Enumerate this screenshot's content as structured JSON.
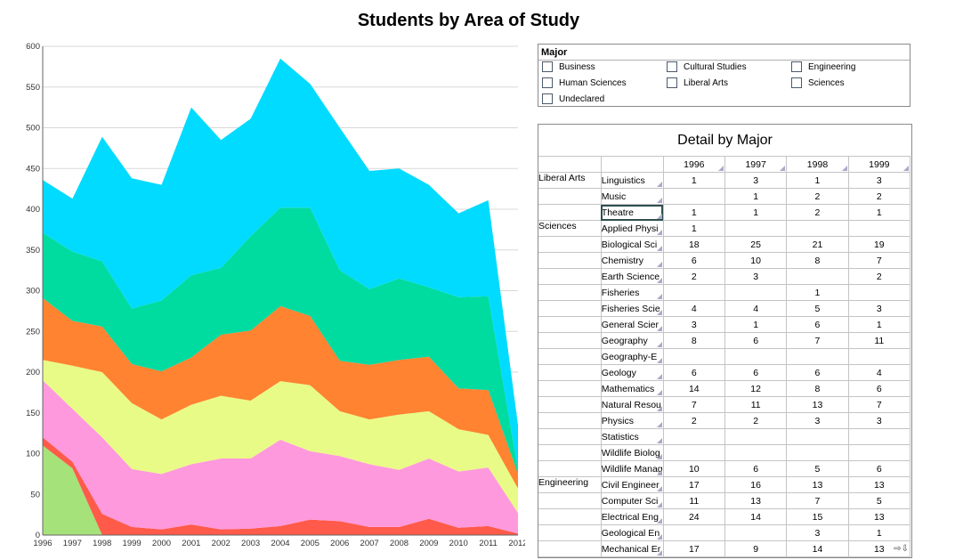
{
  "title": "Students by Area of Study",
  "chart_data": {
    "type": "area",
    "stacked": true,
    "x": [
      "1996",
      "1997",
      "1998",
      "1999",
      "2000",
      "2001",
      "2002",
      "2003",
      "2004",
      "2005",
      "2006",
      "2007",
      "2008",
      "2009",
      "2010",
      "2011",
      "2012"
    ],
    "ylim": [
      0,
      600
    ],
    "yticks": [
      0,
      50,
      100,
      150,
      200,
      250,
      300,
      350,
      400,
      450,
      500,
      550,
      600
    ],
    "grid": true,
    "series": [
      {
        "color": "#a6e27a",
        "values": [
          110,
          82,
          0,
          0,
          0,
          0,
          0,
          0,
          0,
          0,
          0,
          0,
          0,
          0,
          0,
          0,
          0
        ]
      },
      {
        "color": "#ff5a4a",
        "values": [
          10,
          8,
          26,
          10,
          7,
          13,
          7,
          8,
          11,
          19,
          17,
          10,
          10,
          20,
          9,
          11,
          2
        ]
      },
      {
        "color": "#ff99dd",
        "values": [
          70,
          65,
          94,
          71,
          68,
          74,
          87,
          86,
          106,
          84,
          80,
          77,
          70,
          74,
          69,
          72,
          25
        ]
      },
      {
        "color": "#e9fb87",
        "values": [
          25,
          53,
          80,
          81,
          67,
          73,
          77,
          71,
          72,
          81,
          55,
          55,
          68,
          58,
          52,
          40,
          30
        ]
      },
      {
        "color": "#ff8330",
        "values": [
          76,
          55,
          56,
          48,
          59,
          58,
          75,
          86,
          92,
          85,
          62,
          67,
          67,
          67,
          50,
          55,
          18
        ]
      },
      {
        "color": "#00dba0",
        "values": [
          80,
          85,
          80,
          68,
          87,
          101,
          82,
          116,
          121,
          133,
          111,
          93,
          100,
          85,
          112,
          115,
          5
        ]
      },
      {
        "color": "#00dbff",
        "values": [
          65,
          65,
          153,
          160,
          142,
          206,
          157,
          144,
          183,
          152,
          175,
          145,
          135,
          126,
          103,
          118,
          55
        ]
      }
    ]
  },
  "major": {
    "label": "Major",
    "options": [
      "Business",
      "Cultural Studies",
      "Engineering",
      "Human Sciences",
      "Liberal Arts",
      "Sciences",
      "Undeclared"
    ]
  },
  "detail": {
    "title": "Detail by Major",
    "years": [
      "1996",
      "1997",
      "1998",
      "1999"
    ],
    "groups": [
      {
        "area": "Liberal Arts",
        "rows": [
          {
            "name": "Linguistics",
            "vals": [
              "1",
              "3",
              "1",
              "3"
            ]
          },
          {
            "name": "Music",
            "vals": [
              "",
              "1",
              "2",
              "2"
            ]
          },
          {
            "name": "Theatre",
            "vals": [
              "1",
              "1",
              "2",
              "1"
            ]
          }
        ]
      },
      {
        "area": "Sciences",
        "rows": [
          {
            "name": "Applied Physi",
            "vals": [
              "1",
              "",
              "",
              ""
            ]
          },
          {
            "name": "Biological Sci",
            "vals": [
              "18",
              "25",
              "21",
              "19"
            ]
          },
          {
            "name": "Chemistry",
            "vals": [
              "6",
              "10",
              "8",
              "7"
            ]
          },
          {
            "name": "Earth Science",
            "vals": [
              "2",
              "3",
              "",
              "2"
            ]
          },
          {
            "name": "Fisheries",
            "vals": [
              "",
              "",
              "1",
              ""
            ]
          },
          {
            "name": "Fisheries Scie",
            "vals": [
              "4",
              "4",
              "5",
              "3"
            ]
          },
          {
            "name": "General Scier",
            "vals": [
              "3",
              "1",
              "6",
              "1"
            ]
          },
          {
            "name": "Geography",
            "vals": [
              "8",
              "6",
              "7",
              "11"
            ]
          },
          {
            "name": "Geography-E",
            "vals": [
              "",
              "",
              "",
              ""
            ]
          },
          {
            "name": "Geology",
            "vals": [
              "6",
              "6",
              "6",
              "4"
            ]
          },
          {
            "name": "Mathematics",
            "vals": [
              "14",
              "12",
              "8",
              "6"
            ]
          },
          {
            "name": "Natural Resou",
            "vals": [
              "7",
              "11",
              "13",
              "7"
            ]
          },
          {
            "name": "Physics",
            "vals": [
              "2",
              "2",
              "3",
              "3"
            ]
          },
          {
            "name": "Statistics",
            "vals": [
              "",
              "",
              "",
              ""
            ]
          },
          {
            "name": "Wildlife Biolog",
            "vals": [
              "",
              "",
              "",
              ""
            ]
          },
          {
            "name": "Wildlife Manag",
            "vals": [
              "10",
              "6",
              "5",
              "6"
            ]
          }
        ]
      },
      {
        "area": "Engineering",
        "rows": [
          {
            "name": "Civil Engineer",
            "vals": [
              "17",
              "16",
              "13",
              "13"
            ]
          },
          {
            "name": "Computer Sci",
            "vals": [
              "11",
              "13",
              "7",
              "5"
            ]
          },
          {
            "name": "Electrical Eng",
            "vals": [
              "24",
              "14",
              "15",
              "13"
            ]
          },
          {
            "name": "Geological En",
            "vals": [
              "",
              "",
              "3",
              "1"
            ]
          },
          {
            "name": "Mechanical Er",
            "vals": [
              "17",
              "9",
              "14",
              "13"
            ]
          }
        ]
      }
    ]
  }
}
